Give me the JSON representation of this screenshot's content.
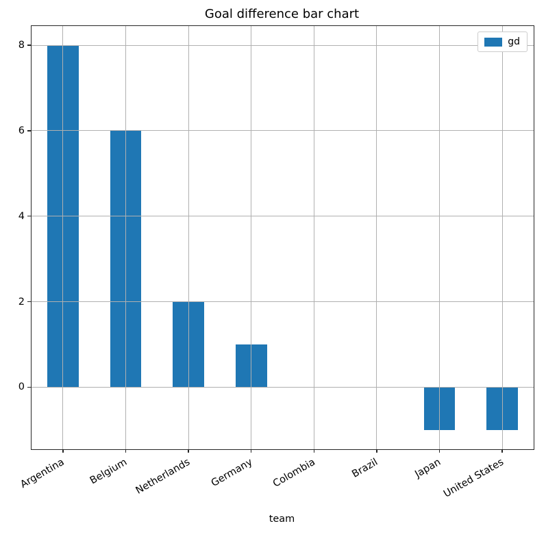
{
  "chart_data": {
    "type": "bar",
    "title": "Goal difference bar chart",
    "xlabel": "team",
    "ylabel": "",
    "legend_label": "gd",
    "legend_position": "upper right",
    "grid": true,
    "categories": [
      "Argentina",
      "Belgium",
      "Netherlands",
      "Germany",
      "Colombia",
      "Brazil",
      "Japan",
      "United States"
    ],
    "values": [
      8,
      6,
      2,
      1,
      0,
      0,
      -1,
      -1
    ],
    "yticks": [
      0,
      2,
      4,
      6,
      8
    ],
    "ylim": [
      -1.45,
      8.45
    ],
    "bar_color": "#1f77b4"
  }
}
